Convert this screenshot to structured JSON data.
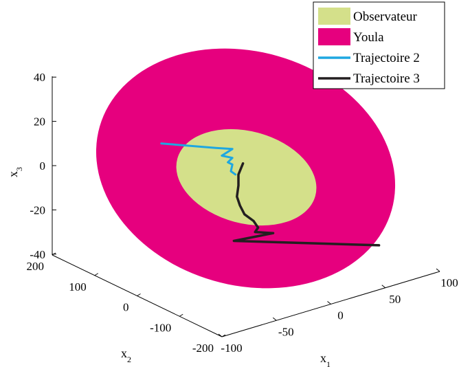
{
  "chart_data": {
    "type": "3d-region-trajectory",
    "title": "",
    "xlabel": "x",
    "xlabel_sub": "1",
    "ylabel": "x",
    "ylabel_sub": "2",
    "zlabel": "x",
    "zlabel_sub": "3",
    "xlim": [
      -100,
      100
    ],
    "ylim": [
      -200,
      200
    ],
    "zlim": [
      -40,
      40
    ],
    "x_ticks": [
      "-100",
      "-50",
      "0",
      "50",
      "100"
    ],
    "y_ticks": [
      "-200",
      "-100",
      "0",
      "100",
      "200"
    ],
    "z_ticks": [
      "-40",
      "-20",
      "0",
      "20",
      "40"
    ],
    "grid": false,
    "legend_position": "top-right",
    "legend": [
      {
        "label": "Observateur",
        "kind": "patch",
        "color": "#d4e08a"
      },
      {
        "label": "Youla",
        "kind": "patch",
        "color": "#e6007e"
      },
      {
        "label": "Trajectoire 2",
        "kind": "line",
        "color": "#1ea7e1"
      },
      {
        "label": "Trajectoire 3",
        "kind": "line",
        "color": "#231f20"
      }
    ],
    "regions": [
      {
        "name": "Youla",
        "shape": "ellipse",
        "color": "#e6007e"
      },
      {
        "name": "Observateur",
        "shape": "ellipse",
        "color": "#d4e08a"
      }
    ],
    "series": [
      {
        "name": "Trajectoire 2",
        "color": "#1ea7e1",
        "points": [
          [
            -56,
            10.0
          ],
          [
            -20,
            8.0
          ],
          [
            -9,
            7.5
          ],
          [
            -16,
            4.5
          ],
          [
            -9,
            3.5
          ],
          [
            -12,
            1.5
          ],
          [
            -9,
            0.5
          ],
          [
            -10,
            -2.5
          ],
          [
            -7,
            -4.0
          ]
        ]
      },
      {
        "name": "Trajectoire 3",
        "color": "#231f20",
        "points": [
          [
            -2,
            1.0
          ],
          [
            -5,
            -4.0
          ],
          [
            -5,
            -9.0
          ],
          [
            -6,
            -14.0
          ],
          [
            -4,
            -18.0
          ],
          [
            -1,
            -22.0
          ],
          [
            5,
            -25.0
          ],
          [
            8,
            -28.0
          ],
          [
            6,
            -30.0
          ],
          [
            18,
            -30.5
          ],
          [
            -8,
            -34.0
          ],
          [
            88,
            -36.0
          ]
        ]
      }
    ]
  }
}
